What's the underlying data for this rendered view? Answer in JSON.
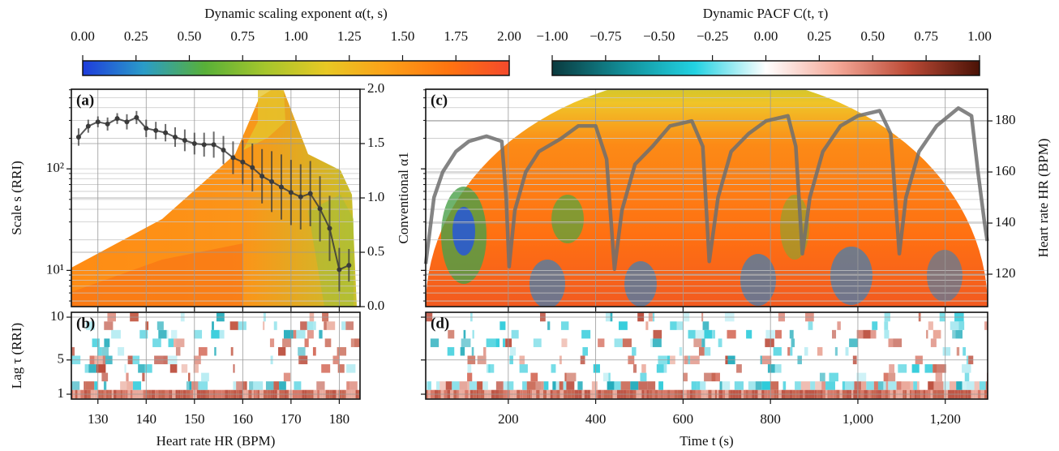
{
  "chart_data": [
    {
      "type": "colorbar",
      "title": "Dynamic scaling exponent α(t, s)",
      "xlim": [
        0,
        2
      ],
      "xticks": [
        {
          "value": 0,
          "label": "0.00"
        },
        {
          "value": 0.25,
          "label": "0.25"
        },
        {
          "value": 0.5,
          "label": "0.50"
        },
        {
          "value": 0.75,
          "label": "0.75"
        },
        {
          "value": 1,
          "label": "1.00"
        },
        {
          "value": 1.25,
          "label": "1.25"
        },
        {
          "value": 1.5,
          "label": "1.50"
        },
        {
          "value": 1.75,
          "label": "1.75"
        },
        {
          "value": 2,
          "label": "2.00"
        }
      ],
      "colors": [
        "#1e3cdc",
        "#2a9cc8",
        "#58b038",
        "#a6c62c",
        "#e8c824",
        "#fca018",
        "#ff7410",
        "#f44a2c"
      ]
    },
    {
      "type": "colorbar",
      "title": "Dynamic PACF C(t, τ)",
      "xlim": [
        -1,
        1
      ],
      "xticks": [
        {
          "value": -1,
          "label": "−1.00"
        },
        {
          "value": -0.75,
          "label": "−0.75"
        },
        {
          "value": -0.5,
          "label": "−0.50"
        },
        {
          "value": -0.25,
          "label": "−0.25"
        },
        {
          "value": 0,
          "label": "0.00"
        },
        {
          "value": 0.25,
          "label": "0.25"
        },
        {
          "value": 0.5,
          "label": "0.50"
        },
        {
          "value": 0.75,
          "label": "0.75"
        },
        {
          "value": 1,
          "label": "1.00"
        }
      ],
      "colors": [
        "#0a3a3e",
        "#128e98",
        "#22d2e2",
        "#ffffff",
        "#f4a898",
        "#bc4a36",
        "#4a1206"
      ]
    },
    {
      "type": "line",
      "panel_label": "(a)",
      "ylabel": "Scale s (RRI)",
      "y2label": "Conventional α1",
      "xlim": [
        124.5,
        184.3
      ],
      "ylim": [
        4.4,
        608
      ],
      "log_y": true,
      "yticks": [
        {
          "value": 10,
          "label": "10¹"
        },
        {
          "value": 100,
          "label": "10²"
        }
      ],
      "y2lim": [
        0,
        2
      ],
      "y2ticks": [
        {
          "value": 0,
          "label": "0.0"
        },
        {
          "value": 0.5,
          "label": "0.5"
        },
        {
          "value": 1,
          "label": "1.0"
        },
        {
          "value": 1.5,
          "label": "1.5"
        },
        {
          "value": 2,
          "label": "2.0"
        }
      ],
      "grid": true,
      "color": "#3a3a3a",
      "axis": "y2",
      "x": [
        126,
        128,
        130,
        132,
        134,
        136,
        138,
        140,
        142,
        144,
        146,
        148,
        150,
        152,
        154,
        156,
        158,
        160,
        162,
        164,
        166,
        168,
        170,
        172,
        174,
        176,
        178,
        180,
        182
      ],
      "values": [
        1.56,
        1.66,
        1.7,
        1.68,
        1.73,
        1.7,
        1.74,
        1.64,
        1.62,
        1.6,
        1.56,
        1.53,
        1.5,
        1.49,
        1.49,
        1.44,
        1.37,
        1.33,
        1.28,
        1.2,
        1.15,
        1.1,
        1.05,
        1.01,
        1.04,
        0.9,
        0.72,
        0.34,
        0.38
      ],
      "errors": [
        0.08,
        0.06,
        0.05,
        0.06,
        0.05,
        0.07,
        0.06,
        0.08,
        0.08,
        0.08,
        0.09,
        0.1,
        0.1,
        0.11,
        0.12,
        0.13,
        0.15,
        0.2,
        0.22,
        0.25,
        0.28,
        0.3,
        0.3,
        0.3,
        0.3,
        0.3,
        0.3,
        0.2,
        0.15
      ]
    },
    {
      "type": "heatmap",
      "panel_label": "(b)",
      "xlabel": "Heart rate HR (BPM)",
      "ylabel": "Lag τ (RRI)",
      "xlim": [
        124.5,
        184.3
      ],
      "xticks": [
        130,
        140,
        150,
        160,
        170,
        180
      ],
      "ylim": [
        0.43,
        10.57
      ],
      "yticks": [
        1,
        5,
        10
      ],
      "grid": true
    },
    {
      "type": "line",
      "panel_label": "(c)",
      "y2label": "Heart rate HR (BPM)",
      "xlim": [
        11,
        1297
      ],
      "y2lim": [
        107.3,
        192.4
      ],
      "y2ticks": [
        120,
        140,
        160,
        180
      ],
      "grid": true,
      "color": "#6e6e6e",
      "axis": "y2",
      "x": [
        11,
        30,
        50,
        80,
        110,
        150,
        185,
        195,
        202,
        215,
        240,
        270,
        320,
        360,
        400,
        425,
        443,
        460,
        490,
        530,
        570,
        620,
        645,
        660,
        680,
        710,
        750,
        790,
        840,
        858,
        873,
        890,
        920,
        960,
        1000,
        1050,
        1075,
        1095,
        1110,
        1140,
        1180,
        1230,
        1260,
        1275,
        1290,
        1296
      ],
      "values": [
        124,
        150,
        160,
        168,
        172,
        174,
        172,
        150,
        123,
        145,
        160,
        168,
        173,
        178,
        178,
        165,
        122,
        145,
        163,
        170,
        178,
        180,
        170,
        125,
        150,
        168,
        175,
        180,
        182,
        170,
        128,
        150,
        168,
        178,
        182,
        184,
        175,
        128,
        150,
        168,
        178,
        185,
        182,
        160,
        140,
        133
      ]
    },
    {
      "type": "heatmap",
      "panel_label": "(d)",
      "xlabel": "Time t (s)",
      "xlim": [
        11,
        1297
      ],
      "xticks": [
        200,
        400,
        600,
        800,
        {
          "value": 1000,
          "label": "1,000"
        },
        {
          "value": 1200,
          "label": "1,200"
        }
      ],
      "ylim": [
        0.43,
        10.57
      ],
      "grid": true
    }
  ]
}
